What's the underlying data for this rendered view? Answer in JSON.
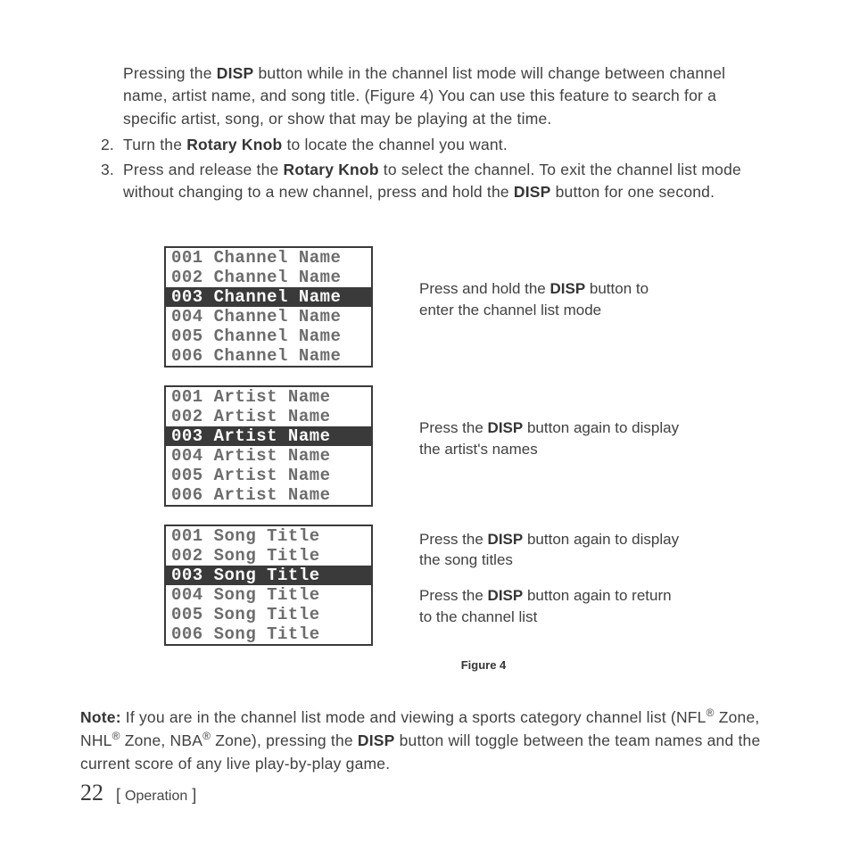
{
  "intro": {
    "pre": "Pressing the ",
    "b1": "DISP",
    "mid": " button while in the channel list mode will change between channel name, artist name, and song title. (Figure 4) You can use this feature to search for a specific artist, song, or show that may be playing at the time."
  },
  "step2": {
    "num": "2.",
    "pre": "Turn the ",
    "b": "Rotary Knob",
    "post": " to locate the channel you want."
  },
  "step3": {
    "num": "3.",
    "pre": "Press and release the ",
    "b1": "Rotary Knob",
    "mid": " to select the channel. To exit the channel list mode without changing to a new channel, press and hold the ",
    "b2": "DISP",
    "post": " button for one second."
  },
  "lcds": {
    "selectedIndex": 2,
    "channel": [
      "001 Channel Name",
      "002 Channel Name",
      "003 Channel Name",
      "004 Channel Name",
      "005 Channel Name",
      "006 Channel Name"
    ],
    "artist": [
      "001 Artist Name",
      "002 Artist Name",
      "003 Artist Name",
      "004 Artist Name",
      "005 Artist Name",
      "006 Artist Name"
    ],
    "song": [
      "001 Song Title",
      "002 Song Title",
      "003 Song Title",
      "004 Song Title",
      "005 Song Title",
      "006 Song Title"
    ]
  },
  "captions": {
    "c1a": "Press and hold the ",
    "c1b": "DISP",
    "c1c": " button to enter the channel list mode",
    "c2a": "Press the ",
    "c2b": "DISP",
    "c2c": " button again to display the artist's names",
    "c3a": "Press the ",
    "c3b": "DISP",
    "c3c": " button again to display the song titles",
    "c4a": "Press the ",
    "c4b": "DISP",
    "c4c": " button again to return to the channel list"
  },
  "figLabel": "Figure 4",
  "note": {
    "label": "Note:",
    "a": " If you are in the channel list mode and viewing a sports category channel list (NFL",
    "r": "®",
    "b": " Zone, NHL",
    "c": " Zone, NBA",
    "d": " Zone), pressing the ",
    "disp": "DISP",
    "e": " button will toggle between the team names and the current score of any live play-by-play game."
  },
  "footer": {
    "page": "22",
    "section": "Operation"
  }
}
